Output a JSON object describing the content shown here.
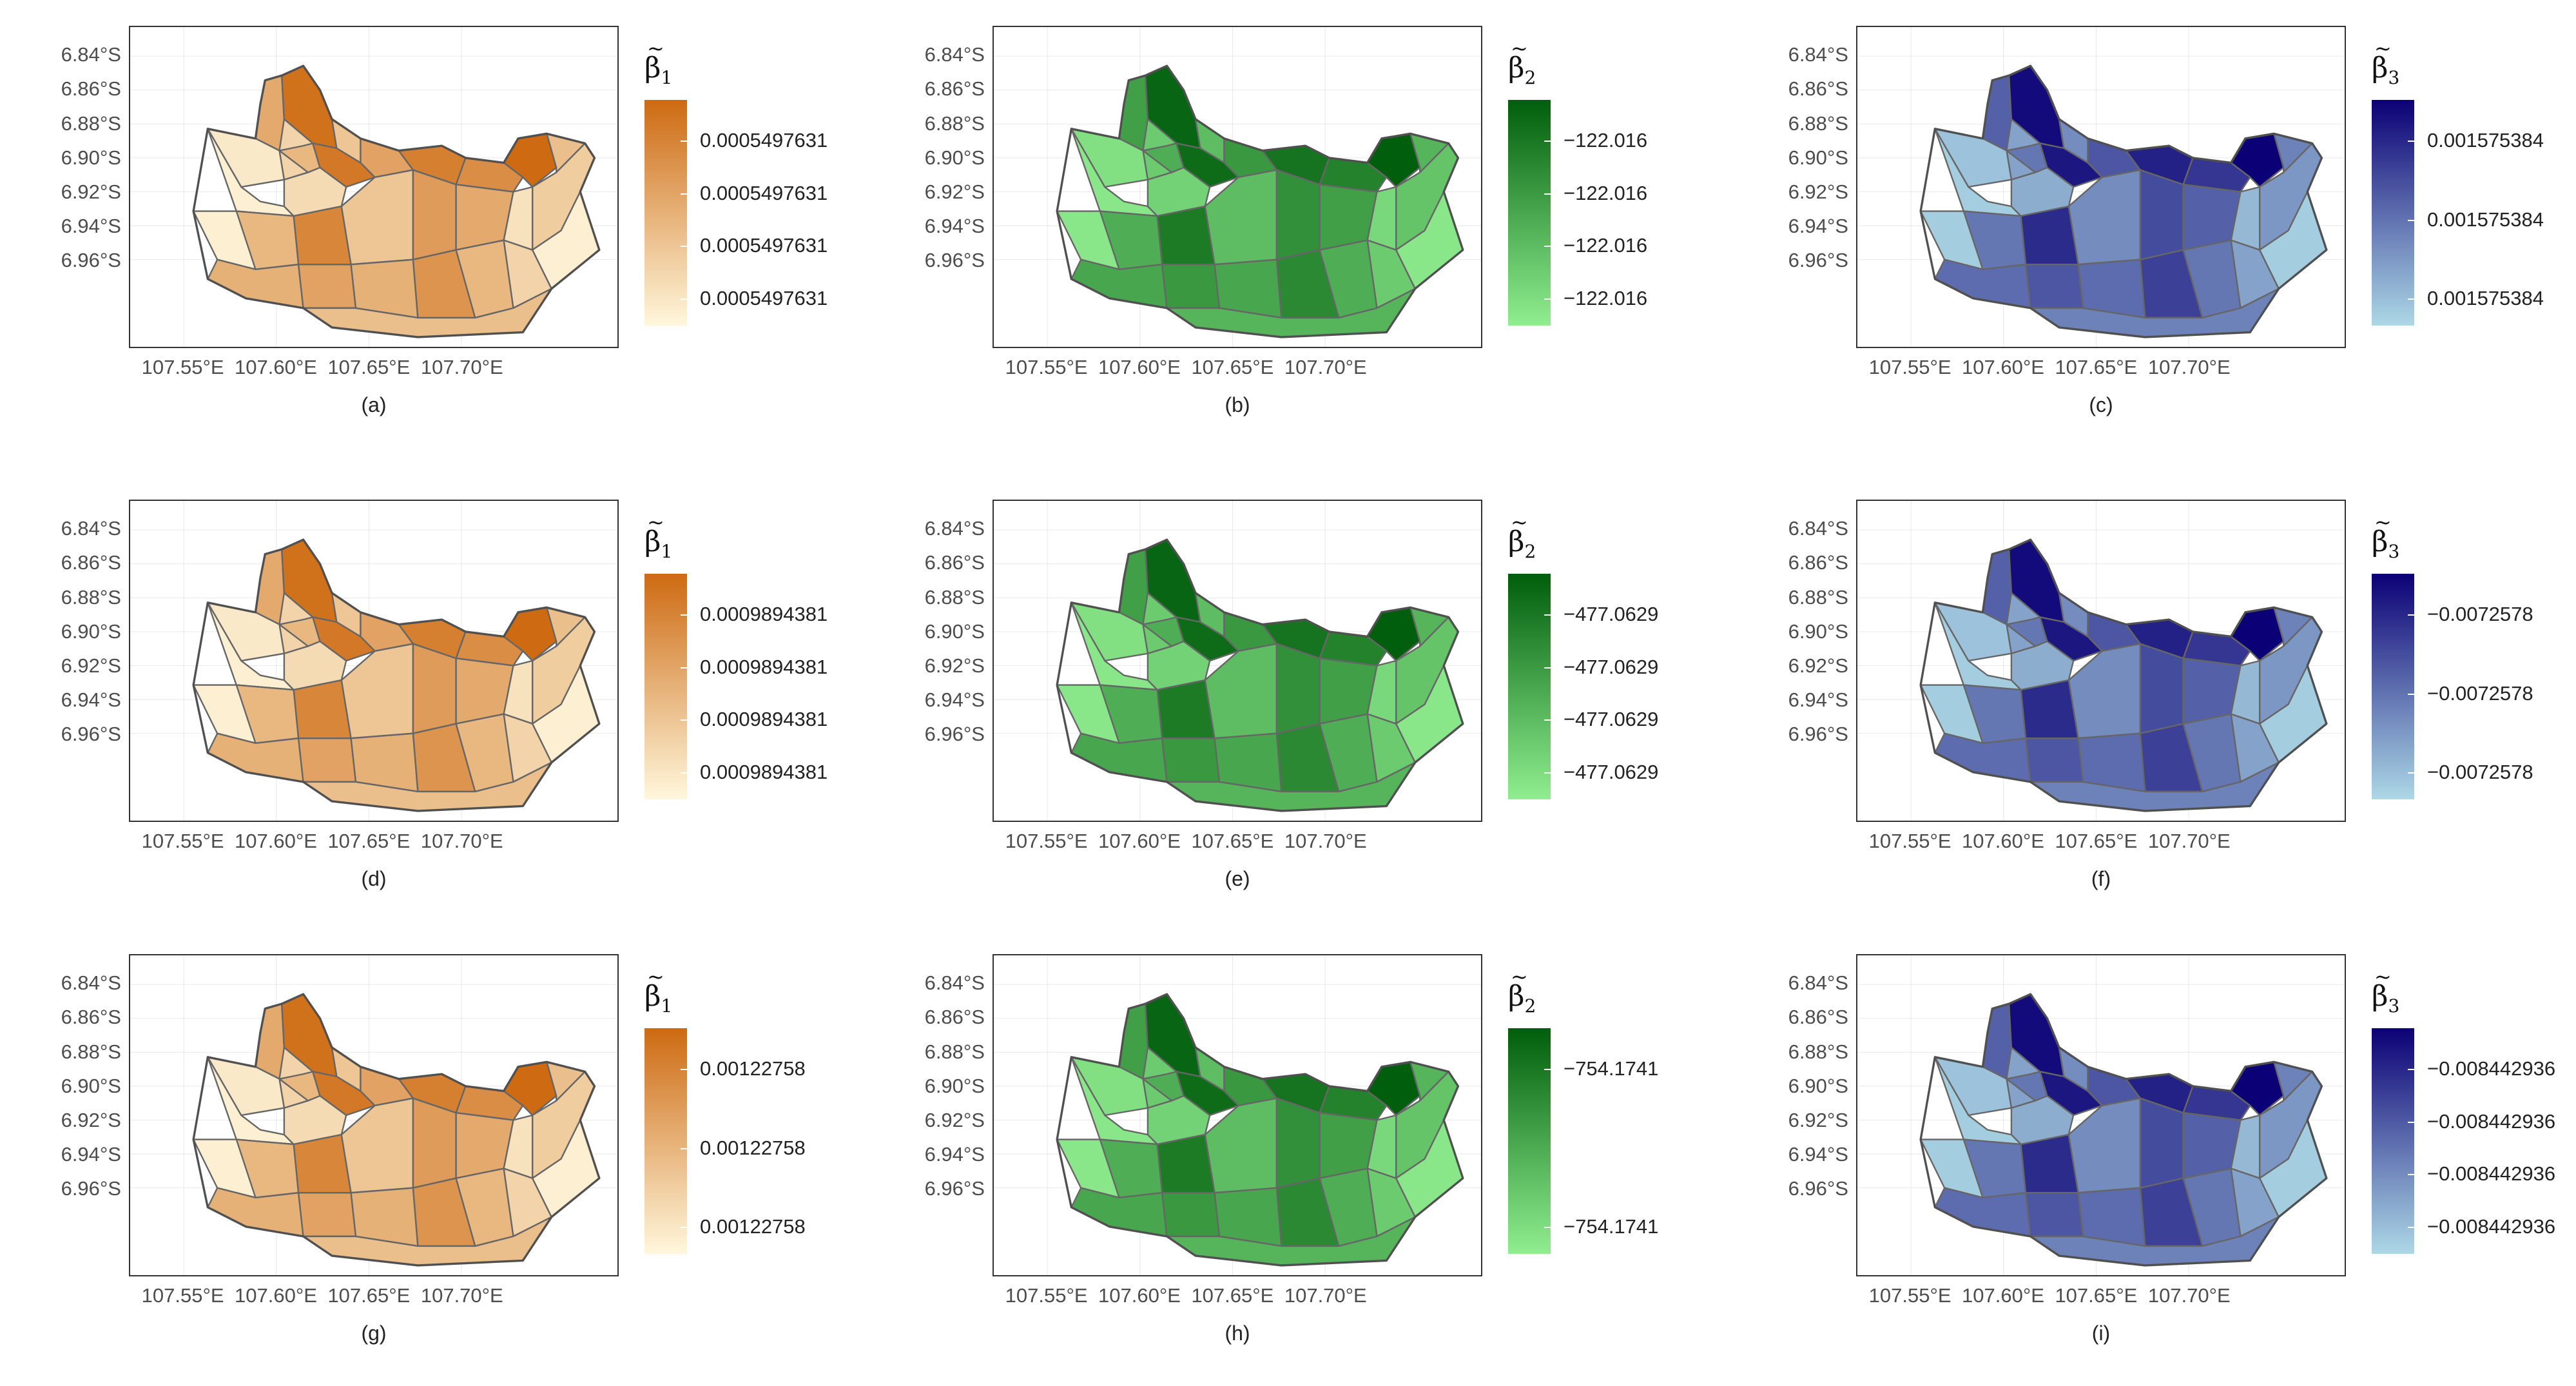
{
  "panels": [
    {
      "caption": "(a)",
      "legend_symbol": "β",
      "legend_subscript": "1",
      "legend_labels": [
        "0.0005497631",
        "0.0005497631",
        "0.0005497631",
        "0.0005497631"
      ],
      "palette": "orange"
    },
    {
      "caption": "(b)",
      "legend_symbol": "β",
      "legend_subscript": "2",
      "legend_labels": [
        "−122.016",
        "−122.016",
        "−122.016",
        "−122.016"
      ],
      "palette": "green"
    },
    {
      "caption": "(c)",
      "legend_symbol": "β",
      "legend_subscript": "3",
      "legend_labels": [
        "0.001575384",
        "0.001575384",
        "0.001575384"
      ],
      "palette": "blue"
    },
    {
      "caption": "(d)",
      "legend_symbol": "β",
      "legend_subscript": "1",
      "legend_labels": [
        "0.0009894381",
        "0.0009894381",
        "0.0009894381",
        "0.0009894381"
      ],
      "palette": "orange"
    },
    {
      "caption": "(e)",
      "legend_symbol": "β",
      "legend_subscript": "2",
      "legend_labels": [
        "−477.0629",
        "−477.0629",
        "−477.0629",
        "−477.0629"
      ],
      "palette": "green"
    },
    {
      "caption": "(f)",
      "legend_symbol": "β",
      "legend_subscript": "3",
      "legend_labels": [
        "−0.0072578",
        "−0.0072578",
        "−0.0072578"
      ],
      "palette": "blue"
    },
    {
      "caption": "(g)",
      "legend_symbol": "β",
      "legend_subscript": "1",
      "legend_labels": [
        "0.00122758",
        "0.00122758",
        "0.00122758"
      ],
      "palette": "orange"
    },
    {
      "caption": "(h)",
      "legend_symbol": "β",
      "legend_subscript": "2",
      "legend_labels": [
        "−754.1741",
        "−754.1741"
      ],
      "palette": "green"
    },
    {
      "caption": "(i)",
      "legend_symbol": "β",
      "legend_subscript": "3",
      "legend_labels": [
        "−0.008442936",
        "−0.008442936",
        "−0.008442936",
        "−0.008442936"
      ],
      "palette": "blue"
    }
  ],
  "axes": {
    "y_ticks": [
      "6.84°S",
      "6.86°S",
      "6.88°S",
      "6.90°S",
      "6.92°S",
      "6.94°S",
      "6.96°S"
    ],
    "x_ticks": [
      "107.55°E",
      "107.60°E",
      "107.65°E",
      "107.70°E"
    ]
  },
  "colors": {
    "orange": {
      "low": "#fff7dc",
      "high": "#cd6a12"
    },
    "green": {
      "low": "#90ee90",
      "high": "#005e0c"
    },
    "blue": {
      "low": "#add8e6",
      "high": "#0b0075"
    }
  },
  "region_intensity": [
    0.55,
    0.95,
    0.25,
    0.1,
    0.45,
    0.05,
    0.9,
    0.35,
    0.2,
    0.6,
    0.85,
    0.75,
    1.0,
    0.4,
    0.3,
    0.05,
    0.45,
    0.8,
    0.35,
    0.65,
    0.55,
    0.15,
    0.5,
    0.6,
    0.5,
    0.7,
    0.45,
    0.25,
    0.05,
    0.4
  ]
}
